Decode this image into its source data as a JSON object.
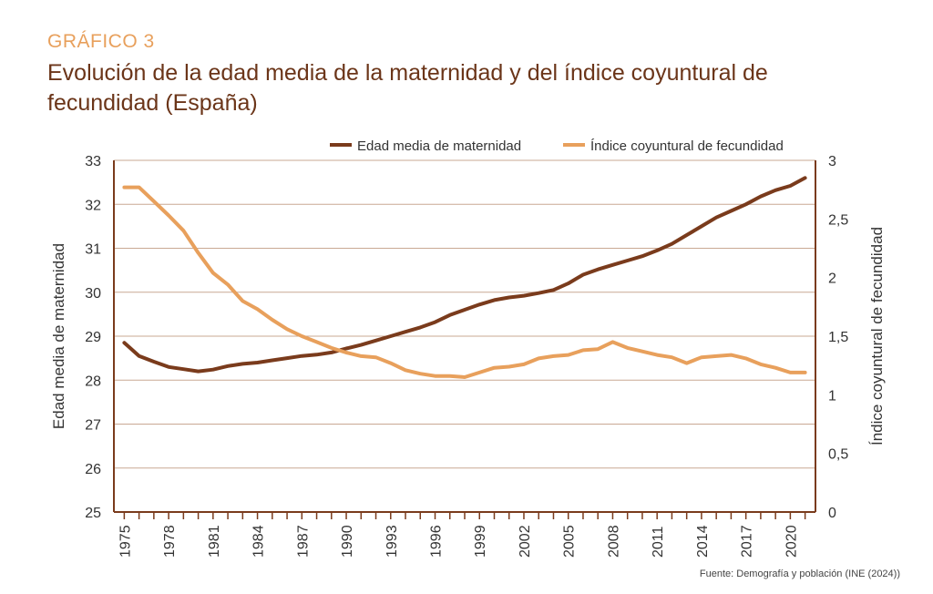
{
  "header": {
    "kicker": "GRÁFICO 3",
    "title_main": "Evolución de la edad media de la maternidad y del índice coyuntural de fecundidad",
    "title_sub": "(España)"
  },
  "source": "Fuente: Demografía y población (INE (2024))",
  "colors": {
    "edad": "#7a3b1c",
    "indice": "#e8a05c",
    "grid": "#c9a893",
    "axis": "#7a3b1c"
  },
  "chart_data": {
    "type": "line",
    "x": [
      1975,
      1976,
      1977,
      1978,
      1979,
      1980,
      1981,
      1982,
      1983,
      1984,
      1985,
      1986,
      1987,
      1988,
      1989,
      1990,
      1991,
      1992,
      1993,
      1994,
      1995,
      1996,
      1997,
      1998,
      1999,
      2000,
      2001,
      2002,
      2003,
      2004,
      2005,
      2006,
      2007,
      2008,
      2009,
      2010,
      2011,
      2012,
      2013,
      2014,
      2015,
      2016,
      2017,
      2018,
      2019,
      2020,
      2021
    ],
    "x_tick_labels": [
      "1975",
      "1978",
      "1981",
      "1984",
      "1987",
      "1990",
      "1993",
      "1996",
      "1999",
      "2002",
      "2005",
      "2008",
      "2011",
      "2014",
      "2017",
      "2020"
    ],
    "series": [
      {
        "name": "Edad media de maternidad",
        "axis": "left",
        "values": [
          28.85,
          28.55,
          28.42,
          28.3,
          28.25,
          28.2,
          28.24,
          28.32,
          28.37,
          28.4,
          28.45,
          28.5,
          28.55,
          28.58,
          28.63,
          28.72,
          28.8,
          28.9,
          29.0,
          29.1,
          29.2,
          29.32,
          29.48,
          29.6,
          29.72,
          29.82,
          29.88,
          29.92,
          29.98,
          30.05,
          30.2,
          30.4,
          30.52,
          30.62,
          30.72,
          30.82,
          30.95,
          31.1,
          31.3,
          31.5,
          31.7,
          31.85,
          32.0,
          32.18,
          32.32,
          32.42,
          32.6
        ]
      },
      {
        "name": "Índice coyuntural de fecundidad",
        "axis": "right",
        "values": [
          2.77,
          2.77,
          2.65,
          2.53,
          2.4,
          2.21,
          2.04,
          1.94,
          1.8,
          1.73,
          1.64,
          1.56,
          1.5,
          1.45,
          1.4,
          1.36,
          1.33,
          1.32,
          1.27,
          1.21,
          1.18,
          1.16,
          1.16,
          1.15,
          1.19,
          1.23,
          1.24,
          1.26,
          1.31,
          1.33,
          1.34,
          1.38,
          1.39,
          1.45,
          1.4,
          1.37,
          1.34,
          1.32,
          1.27,
          1.32,
          1.33,
          1.34,
          1.31,
          1.26,
          1.23,
          1.19,
          1.19
        ]
      }
    ],
    "y_left": {
      "label": "Edad media de maternidad",
      "min": 25,
      "max": 33,
      "ticks": [
        "25",
        "26",
        "27",
        "28",
        "29",
        "30",
        "31",
        "32",
        "33"
      ]
    },
    "y_right": {
      "label": "Índice coyuntural de fecundidad",
      "min": 0,
      "max": 3,
      "ticks": [
        "0",
        "0,5",
        "1",
        "1,5",
        "2",
        "2,5",
        "3"
      ]
    },
    "grid": true,
    "legend": "top-right"
  }
}
